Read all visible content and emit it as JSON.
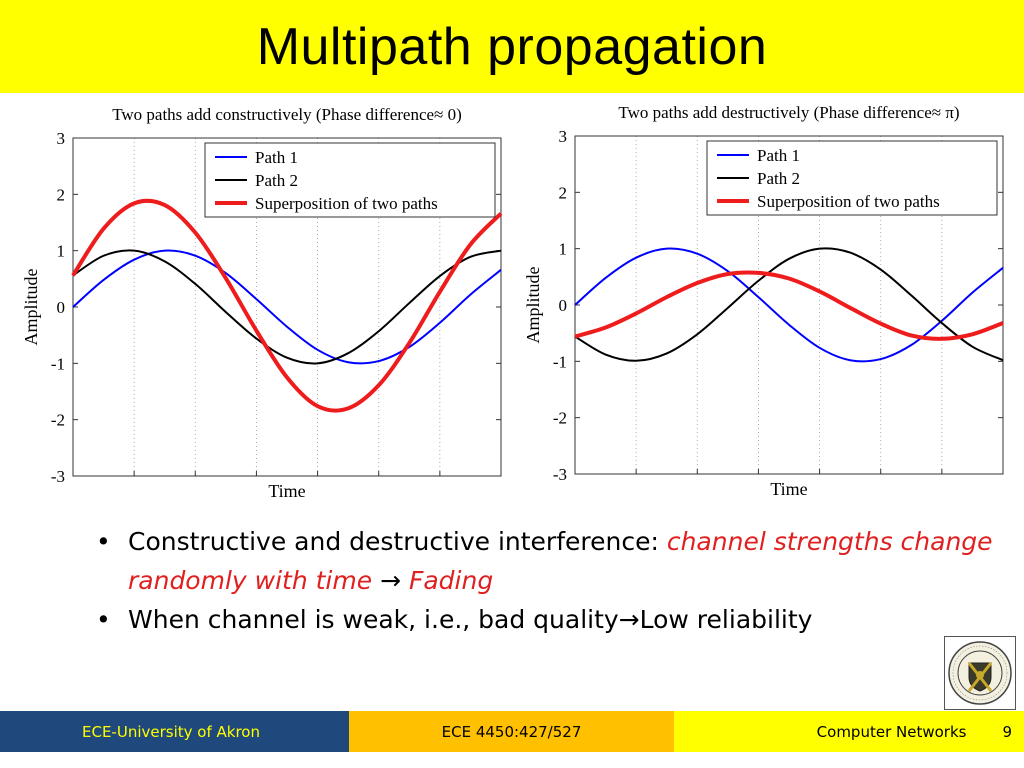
{
  "slide": {
    "title": "Multipath propagation"
  },
  "chart_data": [
    {
      "type": "line",
      "title": "Two paths add constructively (Phase difference≈ 0)",
      "xlabel": "Time",
      "ylabel": "Amplitude",
      "ylim": [
        -3,
        3
      ],
      "yticks": [
        "3",
        "2",
        "1",
        "0",
        "-1",
        "-2",
        "-3"
      ],
      "grid": "dotted vertical",
      "legend_position": "top-right",
      "x": [
        0,
        0.5,
        1,
        1.5,
        2,
        2.5,
        3,
        3.5,
        4,
        4.5,
        5,
        5.5,
        6,
        6.5,
        7
      ],
      "series": [
        {
          "name": "Path 1",
          "color": "#0000ff",
          "values": [
            0,
            0.48,
            0.84,
            1.0,
            0.91,
            0.6,
            0.14,
            -0.35,
            -0.76,
            -0.98,
            -0.96,
            -0.71,
            -0.28,
            0.22,
            0.66
          ]
        },
        {
          "name": "Path 2",
          "color": "#000000",
          "values": [
            0.56,
            0.91,
            1.0,
            0.81,
            0.41,
            -0.09,
            -0.56,
            -0.9,
            -1.0,
            -0.82,
            -0.43,
            0.07,
            0.55,
            0.89,
            1.0
          ]
        },
        {
          "name": "Superposition of two paths",
          "color": "#ee1c1c",
          "values": [
            0.56,
            1.39,
            1.84,
            1.81,
            1.32,
            0.51,
            -0.42,
            -1.25,
            -1.76,
            -1.8,
            -1.39,
            -0.64,
            0.27,
            1.11,
            1.66
          ]
        }
      ]
    },
    {
      "type": "line",
      "title": "Two paths add destructively (Phase difference≈ π)",
      "xlabel": "Time",
      "ylabel": "Amplitude",
      "ylim": [
        -3,
        3
      ],
      "yticks": [
        "3",
        "2",
        "1",
        "0",
        "-1",
        "-2",
        "-3"
      ],
      "grid": "dotted vertical",
      "legend_position": "top-right",
      "x": [
        0,
        0.5,
        1,
        1.5,
        2,
        2.5,
        3,
        3.5,
        4,
        4.5,
        5,
        5.5,
        6,
        6.5,
        7
      ],
      "series": [
        {
          "name": "Path 1",
          "color": "#0000ff",
          "values": [
            0,
            0.48,
            0.84,
            1.0,
            0.91,
            0.6,
            0.14,
            -0.35,
            -0.76,
            -0.98,
            -0.96,
            -0.71,
            -0.28,
            0.22,
            0.66
          ]
        },
        {
          "name": "Path 2",
          "color": "#000000",
          "values": [
            -0.56,
            -0.88,
            -0.99,
            -0.86,
            -0.52,
            -0.05,
            0.43,
            0.82,
            1.0,
            0.93,
            0.63,
            0.17,
            -0.32,
            -0.74,
            -0.98
          ]
        },
        {
          "name": "Superposition of two paths",
          "color": "#ee1c1c",
          "values": [
            -0.56,
            -0.4,
            -0.15,
            0.14,
            0.39,
            0.55,
            0.57,
            0.47,
            0.24,
            -0.05,
            -0.33,
            -0.54,
            -0.6,
            -0.52,
            -0.32
          ]
        }
      ]
    }
  ],
  "bullets": [
    {
      "prefix": "Constructive and destructive interference: ",
      "emphasis": "channel strengths change randomly with time",
      "arrow": " → ",
      "emphasis2": "Fading"
    },
    {
      "text": "When channel is weak, i.e., bad quality→Low reliability"
    }
  ],
  "footer": {
    "left": "ECE-University of Akron",
    "middle": "ECE 4450:427/527",
    "right": "Computer Networks",
    "page": "9"
  }
}
